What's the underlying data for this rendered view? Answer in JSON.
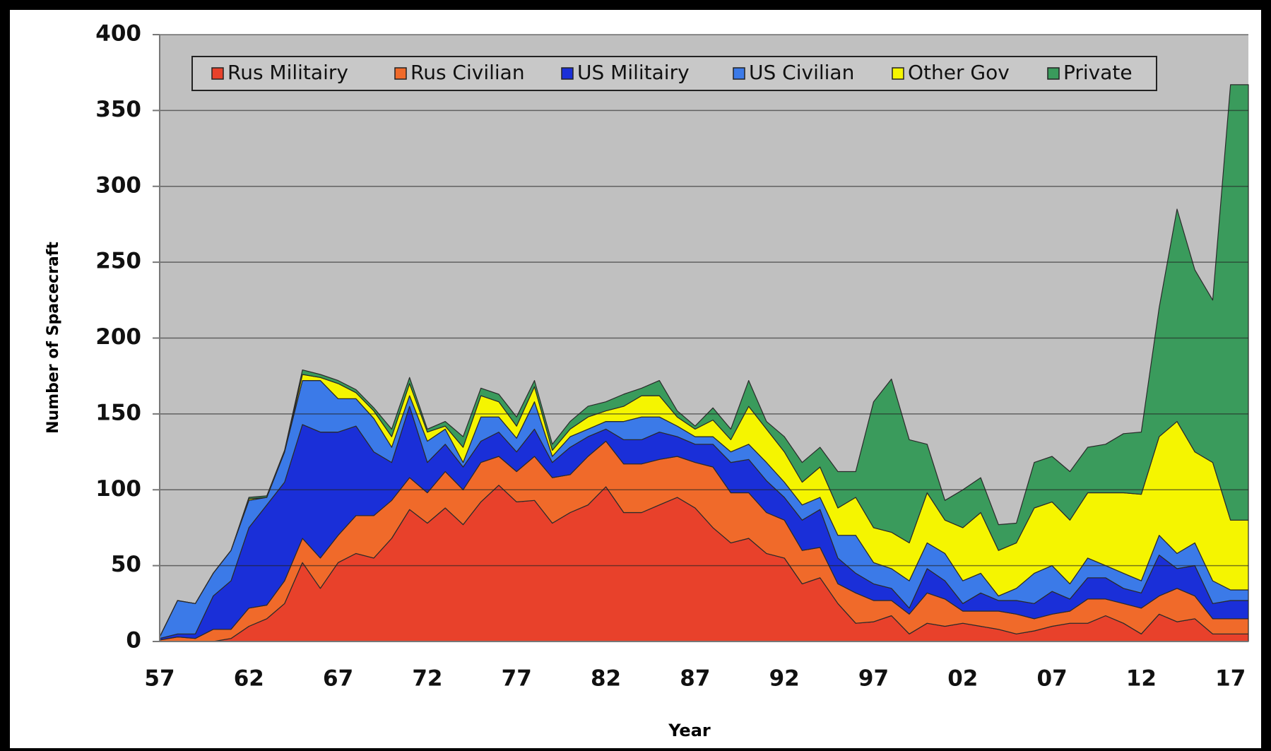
{
  "chart_data": {
    "type": "stacked_area",
    "x_label": "Year",
    "y_label": "Number of Spacecraft",
    "categories": [
      "57",
      null,
      null,
      null,
      null,
      "62",
      null,
      null,
      null,
      null,
      "67",
      null,
      null,
      null,
      null,
      "72",
      null,
      null,
      null,
      null,
      "77",
      null,
      null,
      null,
      null,
      "82",
      null,
      null,
      null,
      null,
      "87",
      null,
      null,
      null,
      null,
      "92",
      null,
      null,
      null,
      null,
      "97",
      null,
      null,
      null,
      null,
      "02",
      null,
      null,
      null,
      null,
      "07",
      null,
      null,
      null,
      null,
      "12",
      null,
      null,
      null,
      null,
      "17",
      null
    ],
    "ylim": [
      0,
      400
    ],
    "yticks": [
      0,
      50,
      100,
      150,
      200,
      250,
      300,
      350,
      400
    ],
    "grid": true,
    "legend": "top",
    "series": [
      {
        "name": "Rus Militairy",
        "color": "#e8412b",
        "values": [
          0,
          0,
          0,
          0,
          2,
          10,
          15,
          25,
          52,
          35,
          52,
          58,
          55,
          68,
          87,
          78,
          88,
          77,
          92,
          103,
          92,
          93,
          78,
          85,
          90,
          102,
          85,
          85,
          90,
          95,
          88,
          75,
          65,
          68,
          58,
          55,
          38,
          42,
          25,
          12,
          13,
          17,
          5,
          12,
          10,
          12,
          10,
          8,
          5,
          7,
          10,
          12,
          12,
          17,
          12,
          5,
          18,
          13,
          15,
          5,
          5,
          5
        ]
      },
      {
        "name": "Rus Civilian",
        "color": "#f06a2a",
        "values": [
          1,
          3,
          2,
          8,
          6,
          12,
          9,
          15,
          16,
          20,
          18,
          25,
          28,
          25,
          21,
          20,
          24,
          23,
          26,
          19,
          20,
          29,
          30,
          25,
          32,
          30,
          32,
          32,
          30,
          27,
          30,
          40,
          33,
          30,
          27,
          25,
          22,
          20,
          13,
          20,
          14,
          10,
          13,
          20,
          18,
          8,
          10,
          12,
          13,
          8,
          8,
          8,
          16,
          11,
          13,
          17,
          12,
          22,
          15,
          10,
          10,
          10
        ]
      },
      {
        "name": "US Militairy",
        "color": "#1a2fd8",
        "values": [
          1,
          2,
          3,
          22,
          32,
          53,
          66,
          65,
          75,
          83,
          68,
          59,
          42,
          25,
          47,
          20,
          18,
          15,
          14,
          16,
          13,
          18,
          10,
          18,
          13,
          8,
          16,
          16,
          18,
          13,
          12,
          15,
          20,
          22,
          21,
          15,
          20,
          25,
          17,
          13,
          11,
          8,
          4,
          16,
          12,
          5,
          12,
          7,
          9,
          10,
          15,
          8,
          14,
          14,
          10,
          10,
          27,
          13,
          20,
          10,
          12,
          12
        ]
      },
      {
        "name": "US Civilian",
        "color": "#3b7ae8",
        "values": [
          1,
          22,
          20,
          15,
          20,
          18,
          5,
          20,
          29,
          34,
          22,
          18,
          22,
          10,
          7,
          14,
          10,
          3,
          16,
          10,
          9,
          18,
          4,
          7,
          5,
          5,
          12,
          15,
          10,
          7,
          5,
          5,
          7,
          10,
          12,
          10,
          10,
          8,
          15,
          25,
          14,
          13,
          18,
          17,
          18,
          15,
          13,
          3,
          8,
          20,
          17,
          10,
          13,
          8,
          10,
          8,
          13,
          10,
          15,
          15,
          7,
          7
        ]
      },
      {
        "name": "Other Gov",
        "color": "#f5f500",
        "values": [
          0,
          0,
          0,
          0,
          0,
          1,
          0,
          0,
          4,
          2,
          10,
          4,
          5,
          7,
          8,
          6,
          2,
          10,
          14,
          10,
          8,
          10,
          4,
          5,
          8,
          7,
          10,
          14,
          14,
          6,
          5,
          11,
          8,
          25,
          22,
          20,
          15,
          20,
          18,
          25,
          23,
          24,
          25,
          33,
          22,
          35,
          40,
          30,
          30,
          43,
          42,
          42,
          43,
          48,
          53,
          57,
          65,
          87,
          60,
          78,
          46,
          46
        ]
      },
      {
        "name": "Private",
        "color": "#3a9b5c",
        "values": [
          0,
          0,
          0,
          0,
          0,
          1,
          1,
          1,
          3,
          2,
          2,
          2,
          2,
          5,
          4,
          2,
          3,
          7,
          5,
          5,
          6,
          4,
          4,
          5,
          7,
          6,
          8,
          5,
          10,
          4,
          2,
          8,
          7,
          17,
          5,
          10,
          13,
          13,
          24,
          17,
          83,
          101,
          68,
          32,
          13,
          25,
          23,
          17,
          13,
          30,
          30,
          32,
          30,
          32,
          39,
          41,
          85,
          140,
          120,
          107,
          287,
          287
        ]
      }
    ]
  }
}
